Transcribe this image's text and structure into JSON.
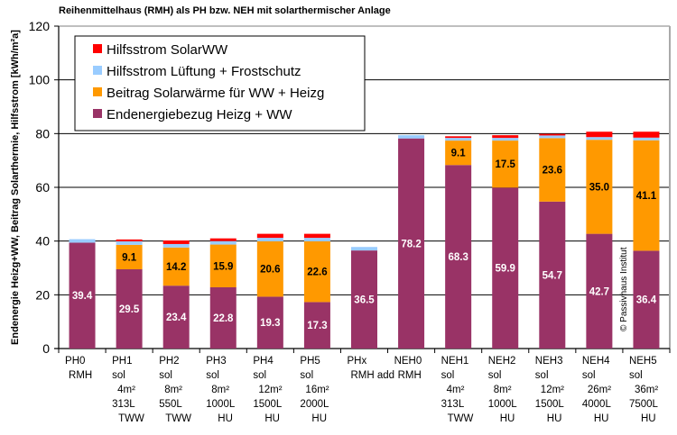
{
  "chart_data": {
    "type": "bar",
    "stacked": true,
    "title": "Reihenmittelhaus (RMH) als PH bzw. NEH mit solarthermischer Anlage",
    "xlabel": "",
    "ylabel": "Endenergie Heizg+WW, Beitrag Solarthermie, Hilfsstrom [kWh/m²a]",
    "ylim": [
      0,
      120
    ],
    "yticks": [
      0,
      20,
      40,
      60,
      80,
      100,
      120
    ],
    "grid": true,
    "legend_position": "top-left",
    "copyright": "© Passivhaus Institut",
    "categories": [
      [
        "PH0",
        "RMH"
      ],
      [
        "PH1",
        "sol",
        "4m²",
        "313L",
        "TWW"
      ],
      [
        "PH2",
        "sol",
        "8m²",
        "550L",
        "TWW"
      ],
      [
        "PH3",
        "sol",
        "8m²",
        "1000L",
        "HU"
      ],
      [
        "PH4",
        "sol",
        "12m²",
        "1500L",
        "HU"
      ],
      [
        "PH5",
        "sol",
        "16m²",
        "2000L",
        "HU"
      ],
      [
        "PHx",
        "RMH add"
      ],
      [
        "NEH0",
        "RMH"
      ],
      [
        "NEH1",
        "sol",
        "4m²",
        "313L",
        "TWW"
      ],
      [
        "NEH2",
        "sol",
        "8m²",
        "1000L",
        "HU"
      ],
      [
        "NEH3",
        "sol",
        "12m²",
        "1500L",
        "HU"
      ],
      [
        "NEH4",
        "sol",
        "26m²",
        "4000L",
        "HU"
      ],
      [
        "NEH5",
        "sol",
        "36m²",
        "7500L",
        "HU"
      ]
    ],
    "series": [
      {
        "name": "Endenergiebezug Heizg + WW",
        "color": "#993366",
        "label_color": "#ffffff",
        "values": [
          39.4,
          29.5,
          23.4,
          22.8,
          19.3,
          17.3,
          36.5,
          78.2,
          68.3,
          59.9,
          54.7,
          42.7,
          36.4
        ],
        "labels": [
          "39.4",
          "29.5",
          "23.4",
          "22.8",
          "19.3",
          "17.3",
          "36.5",
          "78.2",
          "68.3",
          "59.9",
          "54.7",
          "42.7",
          "36.4"
        ]
      },
      {
        "name": "Beitrag Solarwärme für WW + Heizg",
        "color": "#FF9900",
        "label_color": "#000000",
        "values": [
          0,
          9.1,
          14.2,
          15.9,
          20.6,
          22.6,
          0,
          0,
          9.1,
          17.5,
          23.6,
          35.0,
          41.1
        ],
        "labels": [
          "",
          "9.1",
          "14.2",
          "15.9",
          "20.6",
          "22.6",
          "",
          "",
          "9.1",
          "17.5",
          "23.6",
          "35.0",
          "41.1"
        ]
      },
      {
        "name": "Hilfsstrom Lüftung + Frostschutz",
        "color": "#99CCFF",
        "values": [
          1.3,
          1.3,
          1.3,
          1.3,
          1.3,
          1.3,
          1.3,
          1.2,
          1.0,
          1.0,
          1.0,
          1.0,
          1.0
        ]
      },
      {
        "name": "Hilfsstrom SolarWW",
        "color": "#FF0000",
        "values": [
          0,
          0.7,
          1.3,
          1.0,
          1.5,
          1.5,
          0,
          0,
          0.6,
          1.0,
          0.6,
          2.0,
          2.2
        ]
      }
    ],
    "legend_order": [
      3,
      2,
      1,
      0
    ]
  }
}
